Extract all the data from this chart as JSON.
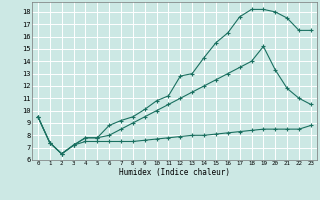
{
  "xlabel": "Humidex (Indice chaleur)",
  "bg_color": "#cce8e4",
  "grid_color": "#ffffff",
  "line_color": "#1a7060",
  "xlim": [
    -0.5,
    23.5
  ],
  "ylim": [
    6,
    18.8
  ],
  "xticks": [
    0,
    1,
    2,
    3,
    4,
    5,
    6,
    7,
    8,
    9,
    10,
    11,
    12,
    13,
    14,
    15,
    16,
    17,
    18,
    19,
    20,
    21,
    22,
    23
  ],
  "yticks": [
    6,
    7,
    8,
    9,
    10,
    11,
    12,
    13,
    14,
    15,
    16,
    17,
    18
  ],
  "line1_x": [
    0,
    1,
    2,
    3,
    4,
    5,
    6,
    7,
    8,
    9,
    10,
    11,
    12,
    13,
    14,
    15,
    16,
    17,
    18,
    19,
    20,
    21,
    22,
    23
  ],
  "line1_y": [
    9.5,
    7.4,
    6.5,
    7.2,
    7.8,
    7.8,
    8.8,
    9.2,
    9.5,
    10.1,
    10.8,
    11.2,
    12.8,
    13.0,
    14.3,
    15.5,
    16.3,
    17.6,
    18.2,
    18.2,
    18.0,
    17.5,
    16.5,
    16.5
  ],
  "line2_x": [
    0,
    1,
    2,
    3,
    4,
    5,
    6,
    7,
    8,
    9,
    10,
    11,
    12,
    13,
    14,
    15,
    16,
    17,
    18,
    19,
    20,
    21,
    22,
    23
  ],
  "line2_y": [
    9.5,
    7.4,
    6.5,
    7.2,
    7.8,
    7.8,
    8.0,
    8.5,
    9.0,
    9.5,
    10.0,
    10.5,
    11.0,
    11.5,
    12.0,
    12.5,
    13.0,
    13.5,
    14.0,
    15.2,
    13.3,
    11.8,
    11.0,
    10.5
  ],
  "line3_x": [
    0,
    1,
    2,
    3,
    4,
    5,
    6,
    7,
    8,
    9,
    10,
    11,
    12,
    13,
    14,
    15,
    16,
    17,
    18,
    19,
    20,
    21,
    22,
    23
  ],
  "line3_y": [
    9.5,
    7.4,
    6.5,
    7.2,
    7.5,
    7.5,
    7.5,
    7.5,
    7.5,
    7.6,
    7.7,
    7.8,
    7.9,
    8.0,
    8.0,
    8.1,
    8.2,
    8.3,
    8.4,
    8.5,
    8.5,
    8.5,
    8.5,
    8.8
  ]
}
